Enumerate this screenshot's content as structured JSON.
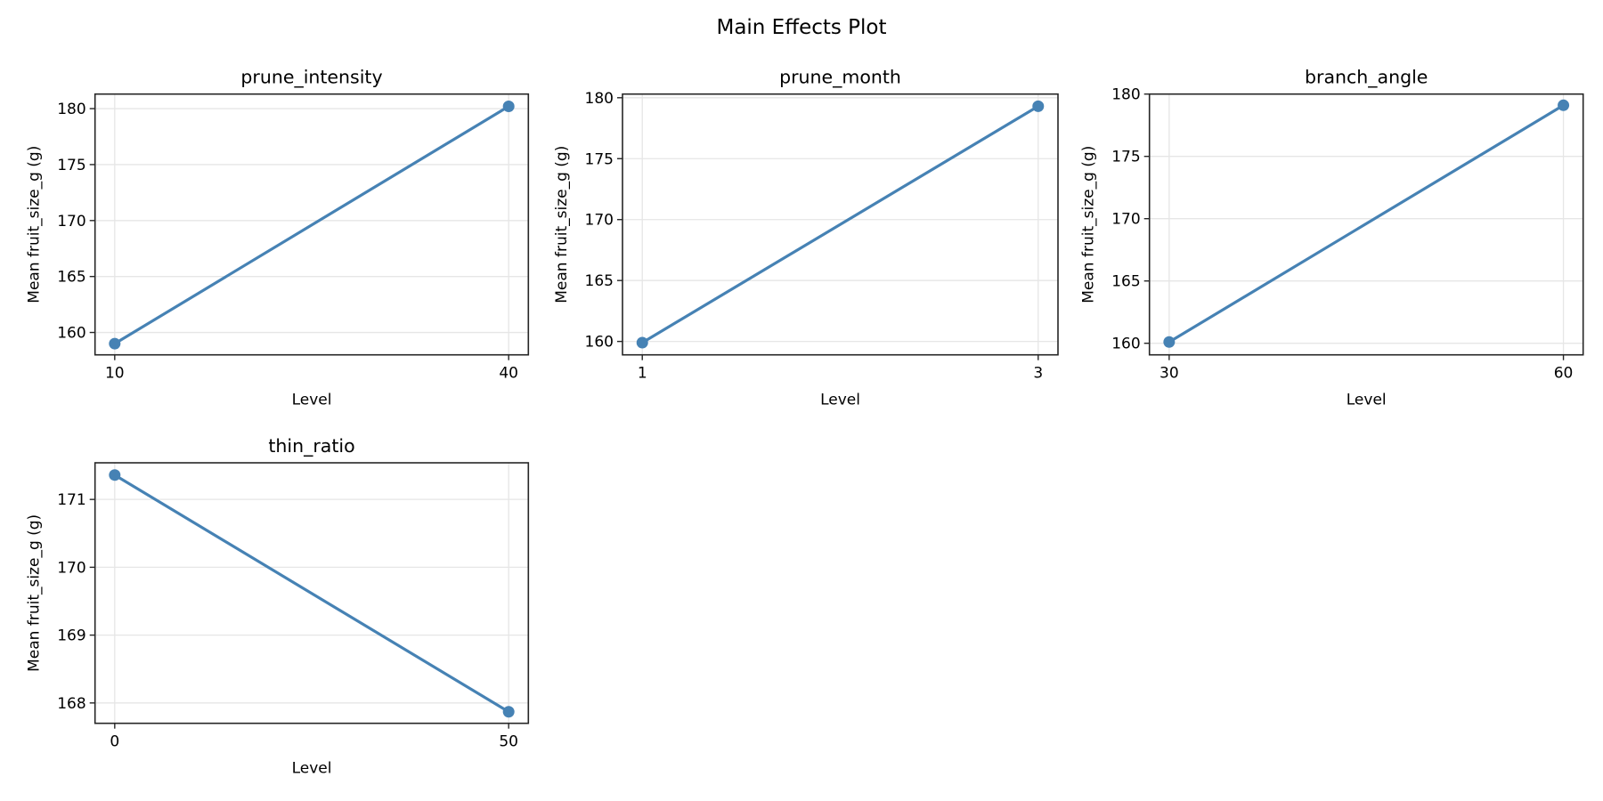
{
  "figure": {
    "title": "Main Effects Plot",
    "line_color": "#4682b4",
    "grid_color": "#e6e6e6",
    "axis_color": "#262626"
  },
  "chart_data": [
    {
      "type": "line",
      "title": "prune_intensity",
      "xlabel": "Level",
      "ylabel": "Mean fruit_size_g (g)",
      "x": [
        10,
        40
      ],
      "x_tick_labels": [
        "10",
        "40"
      ],
      "values": [
        159.0,
        180.2
      ],
      "y_ticks": [
        160,
        165,
        170,
        175,
        180
      ],
      "ylim": [
        158.0,
        181.3
      ],
      "grid": true,
      "marker": "circle"
    },
    {
      "type": "line",
      "title": "prune_month",
      "xlabel": "Level",
      "ylabel": "Mean fruit_size_g (g)",
      "x": [
        1,
        3
      ],
      "x_tick_labels": [
        "1",
        "3"
      ],
      "values": [
        159.9,
        179.3
      ],
      "y_ticks": [
        160,
        165,
        170,
        175,
        180
      ],
      "ylim": [
        158.9,
        180.3
      ],
      "grid": true,
      "marker": "circle"
    },
    {
      "type": "line",
      "title": "branch_angle",
      "xlabel": "Level",
      "ylabel": "Mean fruit_size_g (g)",
      "x": [
        30,
        60
      ],
      "x_tick_labels": [
        "30",
        "60"
      ],
      "values": [
        160.1,
        179.1
      ],
      "y_ticks": [
        160,
        165,
        170,
        175,
        180
      ],
      "ylim": [
        159.07,
        180.0
      ],
      "grid": true,
      "marker": "circle"
    },
    {
      "type": "line",
      "title": "thin_ratio",
      "xlabel": "Level",
      "ylabel": "Mean fruit_size_g (g)",
      "x": [
        0,
        50
      ],
      "x_tick_labels": [
        "0",
        "50"
      ],
      "values": [
        171.36,
        167.87
      ],
      "y_ticks": [
        168,
        169,
        170,
        171
      ],
      "ylim": [
        167.7,
        171.54
      ],
      "grid": true,
      "marker": "circle"
    }
  ]
}
